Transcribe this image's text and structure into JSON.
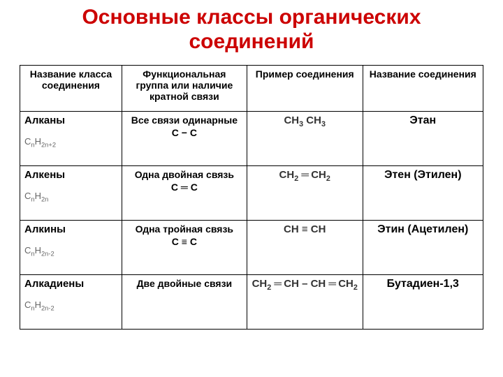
{
  "title": {
    "line1": "Основные классы органических",
    "line2": "соединений",
    "color": "#cc0000",
    "fontsize": 30,
    "font_weight": "bold"
  },
  "table": {
    "border_color": "#000000",
    "header_fontsize": 14,
    "body_fontsize": 15,
    "formula_color": "#666666",
    "example_color": "#333333",
    "name_fontsize": 16,
    "col_widths": [
      "22%",
      "27%",
      "25%",
      "26%"
    ],
    "columns": [
      "Название класса соединения",
      "Функциональная группа или наличие кратной связи",
      "Пример соединения",
      "Название соединения"
    ],
    "rows": [
      {
        "class_name": "Алканы",
        "general_formula_html": "C<span class='sub'>n</span>H<span class='sub'>2n+2</span>",
        "func_top": "Все связи одинарные",
        "func_bond": "C − C",
        "example_html": "CH<span class='sub'>3</span> CH<span class='sub'>3</span>",
        "compound_name": "Этан"
      },
      {
        "class_name": "Алкены",
        "general_formula_html": "C<span class='sub'>n</span>H<span class='sub'>2n</span>",
        "func_top": "Одна двойная связь",
        "func_bond": "C ═ C",
        "example_html": "CH<span class='sub'>2</span> <span class='eq'>═</span> CH<span class='sub'>2</span>",
        "compound_name": "Этен (Этилен)"
      },
      {
        "class_name": "Алкины",
        "general_formula_html": "C<span class='sub'>n</span>H<span class='sub'>2n-2</span>",
        "func_top": "Одна тройная связь",
        "func_bond": "C ≡ C",
        "example_html": "CH <span class='triple'>≡</span> CH",
        "compound_name": "Этин (Ацетилен)"
      },
      {
        "class_name": "Алкадиены",
        "general_formula_html": "C<span class='sub'>n</span>H<span class='sub'>2n-2</span>",
        "func_top": "Две двойные связи",
        "func_bond": "",
        "example_html": "CH<span class='sub'>2</span> <span class='eq'>═</span> CH – CH <span class='eq'>═</span> CH<span class='sub'>2</span>",
        "compound_name": "Бутадиен-1,3"
      }
    ]
  }
}
